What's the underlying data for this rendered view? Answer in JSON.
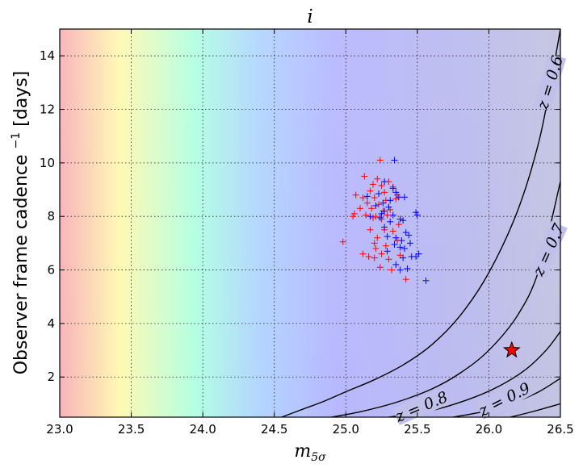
{
  "chart_data": {
    "type": "scatter",
    "title": "i",
    "xlabel_base": "m",
    "xlabel_sub": "5σ",
    "ylabel_prefix": "Observer frame cadence",
    "ylabel_sup": "−1",
    "ylabel_suffix": "[days]",
    "xlim": [
      23.0,
      26.5
    ],
    "ylim": [
      0.5,
      15.0
    ],
    "xticks": [
      23.0,
      23.5,
      24.0,
      24.5,
      25.0,
      25.5,
      26.0,
      26.5
    ],
    "xtick_labels": [
      "23.0",
      "23.5",
      "24.0",
      "24.5",
      "25.0",
      "25.5",
      "26.0",
      "26.5"
    ],
    "yticks": [
      2,
      4,
      6,
      8,
      10,
      12,
      14
    ],
    "ytick_labels": [
      "2",
      "4",
      "6",
      "8",
      "10",
      "12",
      "14"
    ],
    "grid": true,
    "series": [
      {
        "color": "#ff0000",
        "marker": "plus",
        "points": [
          [
            25.24,
            10.1
          ],
          [
            25.13,
            9.5
          ],
          [
            25.22,
            9.4
          ],
          [
            25.3,
            9.3
          ],
          [
            25.19,
            9.2
          ],
          [
            25.25,
            9.15
          ],
          [
            25.33,
            9.1
          ],
          [
            25.17,
            8.95
          ],
          [
            25.27,
            8.9
          ],
          [
            25.36,
            8.8
          ],
          [
            25.07,
            8.8
          ],
          [
            25.12,
            8.7
          ],
          [
            25.2,
            8.7
          ],
          [
            25.28,
            8.6
          ],
          [
            25.35,
            8.65
          ],
          [
            25.15,
            8.5
          ],
          [
            25.23,
            8.45
          ],
          [
            25.1,
            8.3
          ],
          [
            25.18,
            8.3
          ],
          [
            25.26,
            8.2
          ],
          [
            25.31,
            8.25
          ],
          [
            25.06,
            8.1
          ],
          [
            25.14,
            8.05
          ],
          [
            25.21,
            8.0
          ],
          [
            25.29,
            8.05
          ],
          [
            25.05,
            8.0
          ],
          [
            25.19,
            7.95
          ],
          [
            25.25,
            7.9
          ],
          [
            25.37,
            7.7
          ],
          [
            25.17,
            7.5
          ],
          [
            25.27,
            7.5
          ],
          [
            25.33,
            7.45
          ],
          [
            25.22,
            7.2
          ],
          [
            25.36,
            7.1
          ],
          [
            24.98,
            7.05
          ],
          [
            25.2,
            7.0
          ],
          [
            25.28,
            6.9
          ],
          [
            25.21,
            6.8
          ],
          [
            25.12,
            6.6
          ],
          [
            25.25,
            6.6
          ],
          [
            25.38,
            6.55
          ],
          [
            25.16,
            6.5
          ],
          [
            25.2,
            6.45
          ],
          [
            25.3,
            6.4
          ],
          [
            25.24,
            6.1
          ],
          [
            25.32,
            6.0
          ],
          [
            25.42,
            5.65
          ]
        ]
      },
      {
        "color": "#0000ff",
        "marker": "plus",
        "points": [
          [
            25.34,
            10.1
          ],
          [
            25.27,
            9.3
          ],
          [
            25.33,
            9.05
          ],
          [
            25.35,
            8.9
          ],
          [
            25.23,
            8.85
          ],
          [
            25.15,
            8.75
          ],
          [
            25.37,
            8.72
          ],
          [
            25.41,
            8.72
          ],
          [
            25.31,
            8.6
          ],
          [
            25.26,
            8.5
          ],
          [
            25.21,
            8.4
          ],
          [
            25.3,
            8.35
          ],
          [
            25.27,
            8.2
          ],
          [
            25.49,
            8.15
          ],
          [
            25.25,
            8.1
          ],
          [
            25.5,
            8.05
          ],
          [
            25.33,
            8.05
          ],
          [
            25.17,
            8.0
          ],
          [
            25.24,
            7.95
          ],
          [
            25.38,
            7.9
          ],
          [
            25.4,
            7.85
          ],
          [
            25.31,
            7.8
          ],
          [
            25.27,
            7.6
          ],
          [
            25.42,
            7.4
          ],
          [
            25.44,
            7.3
          ],
          [
            25.29,
            7.25
          ],
          [
            25.35,
            7.2
          ],
          [
            25.39,
            7.1
          ],
          [
            25.45,
            7.0
          ],
          [
            25.34,
            6.95
          ],
          [
            25.38,
            6.85
          ],
          [
            25.41,
            6.8
          ],
          [
            25.29,
            6.7
          ],
          [
            25.51,
            6.6
          ],
          [
            25.46,
            6.5
          ],
          [
            25.49,
            6.5
          ],
          [
            25.4,
            6.45
          ],
          [
            25.35,
            6.2
          ],
          [
            25.43,
            6.05
          ],
          [
            25.38,
            6.0
          ],
          [
            25.56,
            5.6
          ]
        ]
      }
    ],
    "reference_point": {
      "x": 26.16,
      "y": 3.0,
      "marker": "star",
      "color": "#ff0000"
    },
    "contours": [
      {
        "label": "z = 0.6",
        "points": [
          [
            24.55,
            0.5
          ],
          [
            24.7,
            0.8
          ],
          [
            24.85,
            1.1
          ],
          [
            25.0,
            1.45
          ],
          [
            25.2,
            1.9
          ],
          [
            25.4,
            2.45
          ],
          [
            25.6,
            3.2
          ],
          [
            25.8,
            4.3
          ],
          [
            26.0,
            5.9
          ],
          [
            26.2,
            8.2
          ],
          [
            26.35,
            10.8
          ],
          [
            26.45,
            13.5
          ],
          [
            26.5,
            15.0
          ]
        ]
      },
      {
        "label": "z = 0.7",
        "points": [
          [
            24.9,
            0.5
          ],
          [
            25.1,
            0.7
          ],
          [
            25.35,
            1.05
          ],
          [
            25.6,
            1.55
          ],
          [
            25.8,
            2.15
          ],
          [
            26.0,
            3.0
          ],
          [
            26.2,
            4.3
          ],
          [
            26.35,
            6.0
          ],
          [
            26.5,
            9.3
          ]
        ]
      },
      {
        "label": "z = 0.8",
        "points": [
          [
            25.3,
            0.5
          ],
          [
            25.6,
            0.75
          ],
          [
            25.85,
            1.15
          ],
          [
            26.05,
            1.6
          ],
          [
            26.25,
            2.25
          ],
          [
            26.4,
            3.0
          ],
          [
            26.5,
            3.7
          ]
        ]
      },
      {
        "label": "z = 0.9",
        "points": [
          [
            25.75,
            0.5
          ],
          [
            26.0,
            0.75
          ],
          [
            26.2,
            1.1
          ],
          [
            26.35,
            1.45
          ],
          [
            26.5,
            1.95
          ]
        ]
      },
      {
        "label": "",
        "points": [
          [
            26.15,
            0.5
          ],
          [
            26.3,
            0.7
          ],
          [
            26.5,
            1.0
          ]
        ]
      }
    ],
    "contour_labels": [
      {
        "label": "z = 0.6",
        "x": 26.43,
        "y": 13.0,
        "angle": -73
      },
      {
        "label": "z = 0.7",
        "x": 26.42,
        "y": 6.75,
        "angle": -66
      },
      {
        "label": "z = 0.8",
        "x": 25.53,
        "y": 0.88,
        "angle": -23
      },
      {
        "label": "z = 0.9",
        "x": 26.11,
        "y": 1.15,
        "angle": -27
      }
    ],
    "background": {
      "type": "colormap-gradient",
      "colors": [
        "#f9b3bb",
        "#fff9b3",
        "#b3ffe3",
        "#b3d5ff",
        "#b8b8ff",
        "#bcbcf0",
        "#c4c4e2"
      ]
    }
  }
}
